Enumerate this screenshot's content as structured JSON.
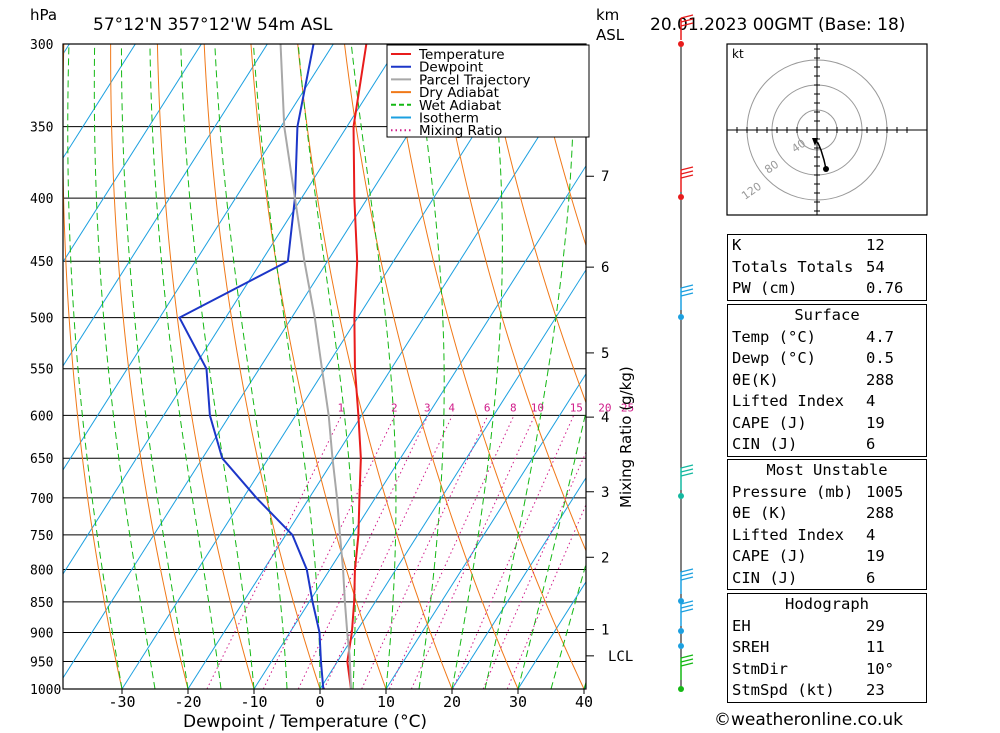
{
  "header": {
    "units_left": "hPa",
    "location": "57°12'N  357°12'W  54m  ASL",
    "km_label": "km",
    "asl_label": "ASL",
    "datetime": "20.01.2023  00GMT  (Base: 18)"
  },
  "chart_data": {
    "type": "line",
    "subtype": "skew-T log-p",
    "xlabel": "Dewpoint / Temperature (°C)",
    "ylabel": "hPa",
    "x_ticks": [
      -30,
      -20,
      -10,
      0,
      10,
      20,
      30,
      40
    ],
    "p_levels": [
      300,
      350,
      400,
      450,
      500,
      550,
      600,
      650,
      700,
      750,
      800,
      850,
      900,
      950,
      1000
    ],
    "xlim": [
      -40,
      40
    ],
    "plim": [
      300,
      1000
    ],
    "km_ticks": [
      {
        "label": "7",
        "p": 384
      },
      {
        "label": "6",
        "p": 455
      },
      {
        "label": "5",
        "p": 534
      },
      {
        "label": "4",
        "p": 602
      },
      {
        "label": "3",
        "p": 692
      },
      {
        "label": "2",
        "p": 782
      },
      {
        "label": "1",
        "p": 895
      }
    ],
    "lcl": {
      "label": "LCL",
      "p": 940
    },
    "mixing_ratio_label": "Mixing Ratio (g/kg)",
    "mixing_ratios": [
      1,
      2,
      3,
      4,
      6,
      8,
      10,
      15,
      20,
      25
    ],
    "legend": [
      "Temperature",
      "Dewpoint",
      "Parcel Trajectory",
      "Dry Adiabat",
      "Wet Adiabat",
      "Isotherm",
      "Mixing Ratio"
    ],
    "legend_position": "top-right",
    "series": [
      {
        "name": "Temperature",
        "color": "#e81c1c",
        "points": [
          [
            1000,
            4.7
          ],
          [
            950,
            1.5
          ],
          [
            900,
            -0.6
          ],
          [
            850,
            -3.2
          ],
          [
            800,
            -6.2
          ],
          [
            750,
            -9
          ],
          [
            700,
            -12.4
          ],
          [
            650,
            -16
          ],
          [
            600,
            -20.5
          ],
          [
            550,
            -25.5
          ],
          [
            500,
            -30.5
          ],
          [
            450,
            -35.5
          ],
          [
            400,
            -42
          ],
          [
            350,
            -49
          ],
          [
            300,
            -55
          ]
        ]
      },
      {
        "name": "Dewpoint",
        "color": "#1c36c8",
        "points": [
          [
            1000,
            0.5
          ],
          [
            950,
            -2.5
          ],
          [
            900,
            -5.5
          ],
          [
            850,
            -9.5
          ],
          [
            800,
            -13.5
          ],
          [
            750,
            -19
          ],
          [
            700,
            -28
          ],
          [
            650,
            -37
          ],
          [
            600,
            -43
          ],
          [
            550,
            -48
          ],
          [
            500,
            -57
          ],
          [
            450,
            -46
          ],
          [
            400,
            -51
          ],
          [
            350,
            -57.5
          ],
          [
            300,
            -63
          ]
        ]
      },
      {
        "name": "Parcel Trajectory",
        "color": "#a8a8a8",
        "points": [
          [
            1000,
            4.7
          ],
          [
            940,
            1.3
          ],
          [
            900,
            -1.3
          ],
          [
            850,
            -4.6
          ],
          [
            800,
            -8
          ],
          [
            750,
            -11.8
          ],
          [
            700,
            -15.8
          ],
          [
            650,
            -20.3
          ],
          [
            600,
            -25
          ],
          [
            550,
            -30.5
          ],
          [
            500,
            -36.5
          ],
          [
            450,
            -43.5
          ],
          [
            400,
            -51
          ],
          [
            350,
            -59.5
          ],
          [
            300,
            -68
          ]
        ]
      }
    ]
  },
  "hodograph": {
    "unit": "kt",
    "ring_labels": [
      "40",
      "80",
      "120"
    ]
  },
  "indices": {
    "rows": [
      {
        "label": "K",
        "value": "12"
      },
      {
        "label": "Totals Totals",
        "value": "54"
      },
      {
        "label": "PW (cm)",
        "value": "0.76"
      }
    ]
  },
  "surface": {
    "title": "Surface",
    "rows": [
      {
        "label": "Temp (°C)",
        "value": "4.7"
      },
      {
        "label": "Dewp (°C)",
        "value": "0.5"
      },
      {
        "label": "θE(K)",
        "value": "288"
      },
      {
        "label": "Lifted Index",
        "value": "4"
      },
      {
        "label": "CAPE (J)",
        "value": "19"
      },
      {
        "label": "CIN (J)",
        "value": "6"
      }
    ]
  },
  "most_unstable": {
    "title": "Most Unstable",
    "rows": [
      {
        "label": "Pressure (mb)",
        "value": "1005"
      },
      {
        "label": "θE (K)",
        "value": "288"
      },
      {
        "label": "Lifted Index",
        "value": "4"
      },
      {
        "label": "CAPE (J)",
        "value": "19"
      },
      {
        "label": "CIN (J)",
        "value": "6"
      }
    ]
  },
  "hodograph_stats": {
    "title": "Hodograph",
    "rows": [
      {
        "label": "EH",
        "value": "29"
      },
      {
        "label": "SREH",
        "value": "11"
      },
      {
        "label": "StmDir",
        "value": "10°"
      },
      {
        "label": "StmSpd (kt)",
        "value": "23"
      }
    ]
  },
  "footer": "©weatheronline.co.uk"
}
